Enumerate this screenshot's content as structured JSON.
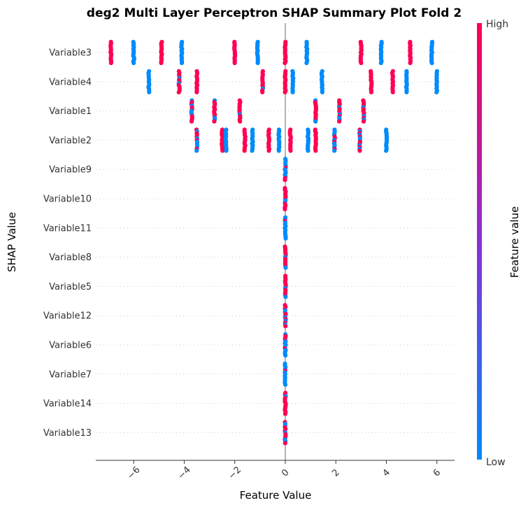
{
  "chart_data": {
    "type": "scatter",
    "title": "deg2 Multi Layer Perceptron SHAP Summary Plot Fold 2",
    "xlabel": "Feature Value",
    "ylabel": "SHAP Value",
    "xlim": [
      -7.5,
      6.7
    ],
    "xticks": [
      -6,
      -4,
      -2,
      0,
      2,
      4,
      6
    ],
    "xtick_labels": [
      "−6",
      "−4",
      "−2",
      "0",
      "2",
      "4",
      "6"
    ],
    "colorbar": {
      "label": "Feature value",
      "high_label": "High",
      "low_label": "Low",
      "high_color": "#ff0052",
      "low_color": "#008bfb"
    },
    "zero_line": 0,
    "categories": [
      "Variable3",
      "Variable4",
      "Variable1",
      "Variable2",
      "Variable9",
      "Variable10",
      "Variable11",
      "Variable8",
      "Variable5",
      "Variable12",
      "Variable6",
      "Variable7",
      "Variable14",
      "Variable13"
    ],
    "series": [
      {
        "category": "Variable3",
        "clusters": [
          {
            "x": -6.9,
            "f": 1
          },
          {
            "x": -6.0,
            "f": 0
          },
          {
            "x": -4.9,
            "f": 1
          },
          {
            "x": -4.1,
            "f": 0
          },
          {
            "x": -2.0,
            "f": 1
          },
          {
            "x": -1.1,
            "f": 0
          },
          {
            "x": 0.0,
            "f": 1
          },
          {
            "x": 0.85,
            "f": 0
          },
          {
            "x": 3.0,
            "f": 1
          },
          {
            "x": 3.8,
            "f": 0
          },
          {
            "x": 4.95,
            "f": 1
          },
          {
            "x": 5.8,
            "f": 0
          }
        ]
      },
      {
        "category": "Variable4",
        "clusters": [
          {
            "x": -5.4,
            "f": 0
          },
          {
            "x": -4.2,
            "f": 0.8
          },
          {
            "x": -3.5,
            "f": 1
          },
          {
            "x": -0.9,
            "f": 0.8
          },
          {
            "x": 0.0,
            "f": 1
          },
          {
            "x": 0.3,
            "f": 0
          },
          {
            "x": 1.45,
            "f": 0
          },
          {
            "x": 3.4,
            "f": 1
          },
          {
            "x": 4.25,
            "f": 1
          },
          {
            "x": 4.8,
            "f": 0
          },
          {
            "x": 6.0,
            "f": 0
          }
        ]
      },
      {
        "category": "Variable1",
        "clusters": [
          {
            "x": -3.7,
            "f": 0.6
          },
          {
            "x": -2.8,
            "f": 0.75
          },
          {
            "x": -1.8,
            "f": 0.75
          },
          {
            "x": 1.2,
            "f": 0.7
          },
          {
            "x": 2.15,
            "f": 0.8
          },
          {
            "x": 3.1,
            "f": 0.7
          }
        ]
      },
      {
        "category": "Variable2",
        "clusters": [
          {
            "x": -3.5,
            "f": 0.4
          },
          {
            "x": -2.5,
            "f": 1
          },
          {
            "x": -2.35,
            "f": 0
          },
          {
            "x": -1.6,
            "f": 1
          },
          {
            "x": -1.3,
            "f": 0
          },
          {
            "x": -0.65,
            "f": 1
          },
          {
            "x": -0.25,
            "f": 0
          },
          {
            "x": 0.2,
            "f": 1
          },
          {
            "x": 0.9,
            "f": 0
          },
          {
            "x": 1.2,
            "f": 1
          },
          {
            "x": 1.95,
            "f": 0.4
          },
          {
            "x": 2.95,
            "f": 0.7
          },
          {
            "x": 4.0,
            "f": 0
          }
        ]
      },
      {
        "category": "Variable9",
        "clusters": [
          {
            "x": 0.0,
            "f": 0.2
          }
        ]
      },
      {
        "category": "Variable10",
        "clusters": [
          {
            "x": 0.0,
            "f": 0.9
          }
        ]
      },
      {
        "category": "Variable11",
        "clusters": [
          {
            "x": 0.0,
            "f": 0.2
          }
        ]
      },
      {
        "category": "Variable8",
        "clusters": [
          {
            "x": 0.0,
            "f": 0.7
          }
        ]
      },
      {
        "category": "Variable5",
        "clusters": [
          {
            "x": 0.0,
            "f": 0.9
          }
        ]
      },
      {
        "category": "Variable12",
        "clusters": [
          {
            "x": 0.0,
            "f": 0.6
          }
        ]
      },
      {
        "category": "Variable6",
        "clusters": [
          {
            "x": 0.0,
            "f": 0.3
          }
        ]
      },
      {
        "category": "Variable7",
        "clusters": [
          {
            "x": 0.0,
            "f": 0.15
          }
        ]
      },
      {
        "category": "Variable14",
        "clusters": [
          {
            "x": 0.0,
            "f": 0.9
          }
        ]
      },
      {
        "category": "Variable13",
        "clusters": [
          {
            "x": 0.0,
            "f": 0.6
          }
        ]
      }
    ]
  }
}
